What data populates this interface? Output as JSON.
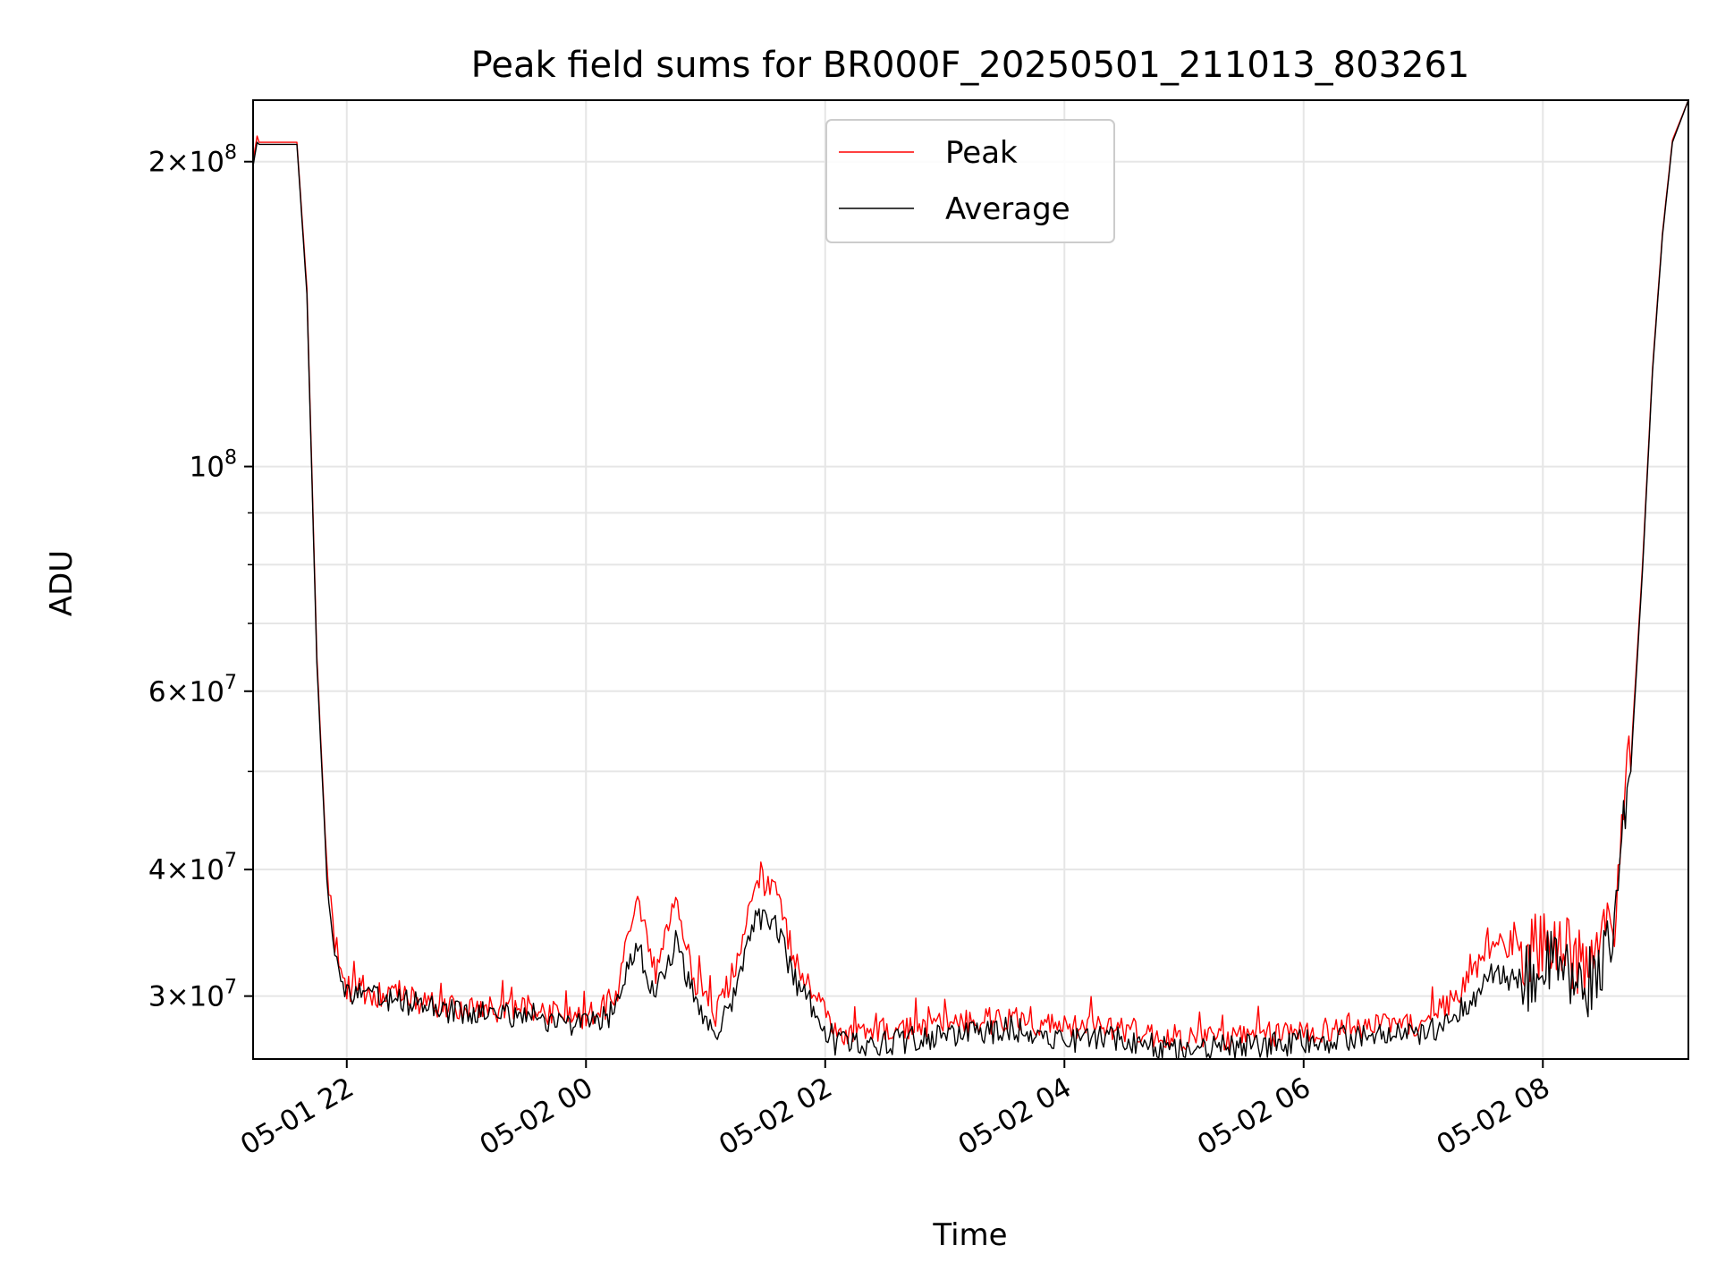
{
  "chart_data": {
    "type": "line",
    "title": "Peak field sums for BR000F_20250501_211013_803261",
    "xlabel": "Time",
    "ylabel": "ADU",
    "yscale": "log",
    "ylim": [
      26000000,
      230000000
    ],
    "xlim": [
      "2025-05-01 21:13",
      "2025-05-02 09:13"
    ],
    "grid": true,
    "legend": {
      "placement": "top-center"
    },
    "x_ticks": [
      "05-01 22",
      "05-02 00",
      "05-02 02",
      "05-02 04",
      "05-02 06",
      "05-02 08"
    ],
    "x_tick_times": [
      "2025-05-01 22:00",
      "2025-05-02 00:00",
      "2025-05-02 02:00",
      "2025-05-02 04:00",
      "2025-05-02 06:00",
      "2025-05-02 08:00"
    ],
    "y_ticks_major": [
      {
        "value": 30000000,
        "mantissa": "3",
        "exp": "7"
      },
      {
        "value": 40000000,
        "mantissa": "4",
        "exp": "7"
      },
      {
        "value": 60000000,
        "mantissa": "6",
        "exp": "7"
      },
      {
        "value": 100000000,
        "mantissa": "",
        "exp": "8"
      },
      {
        "value": 200000000,
        "mantissa": "2",
        "exp": "8"
      }
    ],
    "y_ticks_minor": [
      50000000,
      70000000,
      80000000,
      90000000
    ],
    "x": [
      "2025-05-01 21:13",
      "2025-05-01 21:15",
      "2025-05-01 21:16",
      "2025-05-01 21:20",
      "2025-05-01 21:35",
      "2025-05-01 21:40",
      "2025-05-01 21:45",
      "2025-05-01 21:50",
      "2025-05-01 21:54",
      "2025-05-01 21:57",
      "2025-05-01 22:00",
      "2025-05-01 22:30",
      "2025-05-01 23:00",
      "2025-05-01 23:30",
      "2025-05-02 00:00",
      "2025-05-02 00:15",
      "2025-05-02 00:25",
      "2025-05-02 00:35",
      "2025-05-02 00:45",
      "2025-05-02 00:55",
      "2025-05-02 01:05",
      "2025-05-02 01:15",
      "2025-05-02 01:25",
      "2025-05-02 01:35",
      "2025-05-02 01:45",
      "2025-05-02 01:55",
      "2025-05-02 02:05",
      "2025-05-02 02:30",
      "2025-05-02 03:00",
      "2025-05-02 03:35",
      "2025-05-02 04:00",
      "2025-05-02 04:25",
      "2025-05-02 04:50",
      "2025-05-02 05:30",
      "2025-05-02 06:00",
      "2025-05-02 06:30",
      "2025-05-02 07:00",
      "2025-05-02 07:20",
      "2025-05-02 07:35",
      "2025-05-02 07:50",
      "2025-05-02 08:05",
      "2025-05-02 08:20",
      "2025-05-02 08:35",
      "2025-05-02 08:45",
      "2025-05-02 08:50",
      "2025-05-02 08:55",
      "2025-05-02 09:00",
      "2025-05-02 09:05",
      "2025-05-02 09:13"
    ],
    "series": [
      {
        "name": "Peak",
        "color": "#ff0000",
        "values": [
          200000000,
          212000000,
          209000000,
          209000000,
          209000000,
          150000000,
          65000000,
          40000000,
          34000000,
          31500000,
          30500000,
          29800000,
          29000000,
          29200000,
          28600000,
          29700000,
          37500000,
          31500000,
          37000000,
          31000000,
          28800000,
          32000000,
          39500000,
          38000000,
          32500000,
          30000000,
          27600000,
          27700000,
          28100000,
          28500000,
          27900000,
          28000000,
          27300000,
          27300000,
          27700000,
          28000000,
          28000000,
          30500000,
          34000000,
          33000000,
          34500000,
          32000000,
          35000000,
          55000000,
          80000000,
          125000000,
          170000000,
          210000000,
          230000000
        ]
      },
      {
        "name": "Average",
        "color": "#000000",
        "values": [
          198000000,
          209000000,
          208000000,
          208000000,
          208000000,
          148000000,
          64000000,
          39500000,
          33500000,
          31000000,
          30200000,
          29600000,
          28800000,
          28800000,
          28000000,
          29000000,
          34000000,
          30000000,
          34000000,
          29500000,
          27700000,
          30000000,
          36000000,
          35500000,
          31000000,
          29000000,
          27000000,
          27000000,
          27400000,
          27900000,
          27200000,
          27300000,
          26700000,
          26700000,
          27000000,
          27400000,
          27400000,
          29200000,
          31500000,
          31000000,
          32500000,
          30500000,
          33500000,
          54000000,
          79000000,
          124000000,
          169000000,
          209000000,
          230000000
        ]
      }
    ]
  }
}
